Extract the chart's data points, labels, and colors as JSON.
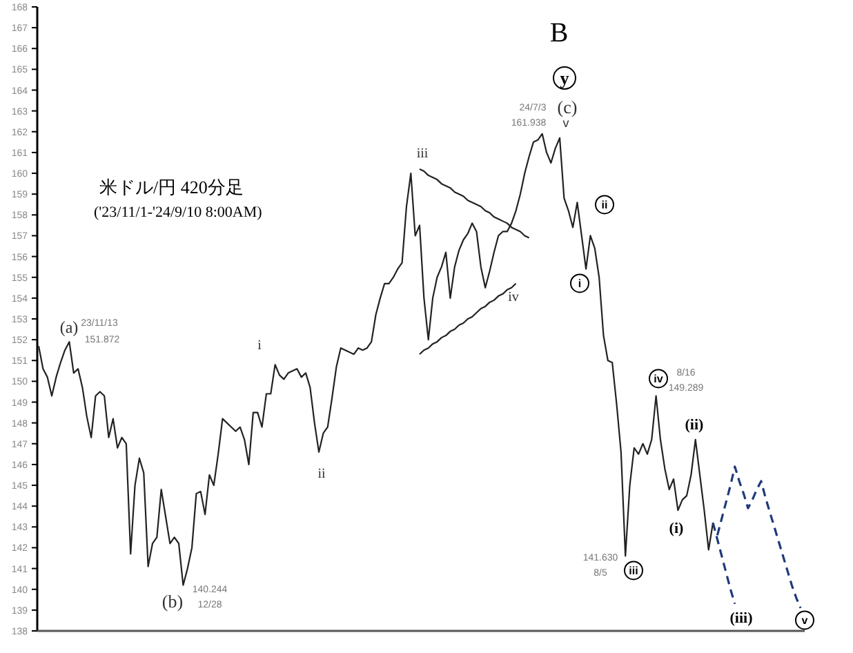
{
  "chart_data": {
    "type": "line",
    "title": "米ドル/円 420分足",
    "subtitle": "('23/11/1-'24/9/10 8:00AM)",
    "categories": [
      null,
      null,
      null,
      null,
      null,
      null,
      null,
      null,
      null,
      null,
      null,
      null,
      null,
      null,
      null,
      null,
      null,
      null,
      null,
      null,
      null,
      null,
      null,
      null,
      null,
      null,
      null,
      null,
      null,
      null,
      null,
      null,
      null,
      null,
      null,
      null,
      null,
      null,
      null,
      null,
      null,
      null,
      null,
      null,
      null,
      null,
      null,
      null,
      null,
      null,
      null,
      null,
      null,
      null,
      null,
      null,
      null,
      null,
      null,
      null,
      null,
      null,
      null,
      null,
      null,
      null,
      null,
      null,
      null,
      null,
      null,
      null,
      null,
      null,
      null,
      null,
      null,
      null,
      null,
      null,
      null,
      null,
      null,
      null,
      null,
      null,
      null,
      null,
      null,
      null,
      null,
      null,
      null,
      null,
      null,
      null,
      null,
      null,
      null,
      null,
      null,
      null,
      null,
      null,
      null,
      null,
      null,
      null,
      null,
      null,
      null,
      null,
      null,
      null,
      null,
      null,
      null,
      null,
      null,
      null,
      null,
      null,
      null,
      null,
      null,
      null,
      null,
      null,
      null,
      null,
      null,
      null,
      null,
      null,
      null,
      null,
      null,
      null,
      null,
      null,
      null,
      null,
      null,
      null,
      null,
      null,
      null,
      null,
      null,
      null,
      null,
      null,
      null,
      null,
      null,
      null,
      null,
      null,
      null,
      null,
      null,
      null,
      null,
      null,
      null,
      null,
      null,
      null,
      null,
      null,
      null,
      null,
      null,
      null,
      null
    ],
    "series": [
      {
        "color": "#222222",
        "line_style": "solid",
        "values": [
          151.7,
          150.6,
          150.2,
          149.3,
          150.2,
          150.9,
          151.5,
          151.9,
          150.4,
          150.6,
          149.7,
          148.3,
          147.3,
          149.3,
          149.5,
          149.3,
          147.3,
          148.2,
          146.8,
          147.3,
          147.0,
          141.7,
          145.0,
          146.3,
          145.6,
          141.1,
          142.2,
          142.5,
          144.8,
          143.5,
          142.2,
          142.5,
          142.2,
          140.2,
          141.0,
          142.0,
          144.6,
          144.7,
          143.6,
          145.5,
          145.0,
          146.5,
          148.2,
          148.0,
          147.8,
          147.6,
          147.8,
          147.2,
          146.0,
          148.5,
          148.5,
          147.8,
          149.4,
          149.4,
          150.8,
          150.3,
          150.1,
          150.4,
          150.5,
          150.6,
          150.2,
          150.4,
          149.7,
          148.0,
          146.6,
          147.5,
          147.8,
          149.2,
          150.7,
          151.6,
          151.5,
          151.4,
          151.3,
          151.6,
          151.5,
          151.6,
          151.9,
          153.2,
          154.0,
          154.7,
          154.7,
          155.0,
          155.4,
          155.7,
          158.4,
          160.0,
          157.0,
          157.5,
          154.0,
          152.0,
          154.0,
          155.0,
          155.5,
          156.2,
          154.0,
          155.5,
          156.3,
          156.8,
          157.1,
          157.6,
          157.2,
          155.5,
          154.5,
          155.3,
          156.2,
          157.0,
          157.2,
          157.2,
          157.6,
          158.2,
          159.0,
          160.0,
          160.8,
          161.5,
          161.6,
          161.9,
          161.0,
          160.5,
          161.2,
          161.7,
          158.8,
          158.2,
          157.4,
          158.6,
          157.0,
          155.4,
          157.0,
          156.4,
          155.0,
          152.2,
          151.0,
          150.9,
          148.9,
          146.6,
          141.6,
          145.0,
          146.8,
          146.5,
          147.0,
          146.5,
          147.2,
          149.3,
          147.2,
          145.8,
          144.8,
          145.3,
          143.8,
          144.3,
          144.5,
          145.5,
          147.2,
          145.5,
          143.8,
          141.9,
          143.2,
          null,
          null,
          null,
          null,
          null,
          null,
          null,
          null,
          null,
          null,
          null,
          null,
          null,
          null,
          null,
          null,
          null,
          null,
          null,
          null
        ]
      },
      {
        "color": "#1f3a7a",
        "line_style": "dashed",
        "values": [
          null,
          null,
          null,
          null,
          null,
          null,
          null,
          null,
          null,
          null,
          null,
          null,
          null,
          null,
          null,
          null,
          null,
          null,
          null,
          null,
          null,
          null,
          null,
          null,
          null,
          null,
          null,
          null,
          null,
          null,
          null,
          null,
          null,
          null,
          null,
          null,
          null,
          null,
          null,
          null,
          null,
          null,
          null,
          null,
          null,
          null,
          null,
          null,
          null,
          null,
          null,
          null,
          null,
          null,
          null,
          null,
          null,
          null,
          null,
          null,
          null,
          null,
          null,
          null,
          null,
          null,
          null,
          null,
          null,
          null,
          null,
          null,
          null,
          null,
          null,
          null,
          null,
          null,
          null,
          null,
          null,
          null,
          null,
          null,
          null,
          null,
          null,
          null,
          null,
          null,
          null,
          null,
          null,
          null,
          null,
          null,
          null,
          null,
          null,
          null,
          null,
          null,
          null,
          null,
          null,
          null,
          null,
          null,
          null,
          null,
          null,
          null,
          null,
          null,
          null,
          null,
          null,
          null,
          null,
          null,
          null,
          null,
          null,
          null,
          null,
          null,
          null,
          null,
          null,
          null,
          null,
          null,
          null,
          null,
          null,
          null,
          null,
          null,
          null,
          null,
          null,
          null,
          null,
          null,
          null,
          null,
          null,
          null,
          null,
          null,
          null,
          null,
          null,
          null,
          143.2,
          142.4,
          141.6,
          140.8,
          140.0,
          139.3,
          null,
          null,
          null,
          null,
          null,
          null,
          null,
          null,
          null,
          null,
          null,
          null,
          null,
          null,
          null
        ]
      },
      {
        "color": "#1f3a7a",
        "line_style": "dashed",
        "values": [
          null,
          null,
          null,
          null,
          null,
          null,
          null,
          null,
          null,
          null,
          null,
          null,
          null,
          null,
          null,
          null,
          null,
          null,
          null,
          null,
          null,
          null,
          null,
          null,
          null,
          null,
          null,
          null,
          null,
          null,
          null,
          null,
          null,
          null,
          null,
          null,
          null,
          null,
          null,
          null,
          null,
          null,
          null,
          null,
          null,
          null,
          null,
          null,
          null,
          null,
          null,
          null,
          null,
          null,
          null,
          null,
          null,
          null,
          null,
          null,
          null,
          null,
          null,
          null,
          null,
          null,
          null,
          null,
          null,
          null,
          null,
          null,
          null,
          null,
          null,
          null,
          null,
          null,
          null,
          null,
          null,
          null,
          null,
          null,
          null,
          null,
          null,
          null,
          null,
          null,
          null,
          null,
          null,
          null,
          null,
          null,
          null,
          null,
          null,
          null,
          null,
          null,
          null,
          null,
          null,
          null,
          null,
          null,
          null,
          null,
          null,
          null,
          null,
          null,
          null,
          null,
          null,
          null,
          null,
          null,
          null,
          null,
          null,
          null,
          null,
          null,
          null,
          null,
          null,
          null,
          null,
          null,
          null,
          null,
          null,
          null,
          null,
          null,
          null,
          null,
          null,
          null,
          null,
          null,
          null,
          null,
          null,
          null,
          null,
          null,
          null,
          null,
          null,
          null,
          null,
          142.6,
          143.4,
          144.2,
          145.0,
          145.9,
          145.2,
          144.6,
          143.9,
          144.3,
          144.8,
          145.2,
          144.4,
          143.7,
          143.0,
          142.3,
          141.6,
          140.9,
          140.2,
          139.6,
          139.1
        ]
      },
      {
        "color": "#222222",
        "line_style": "solid",
        "values": [
          null,
          null,
          null,
          null,
          null,
          null,
          null,
          null,
          null,
          null,
          null,
          null,
          null,
          null,
          null,
          null,
          null,
          null,
          null,
          null,
          null,
          null,
          null,
          null,
          null,
          null,
          null,
          null,
          null,
          null,
          null,
          null,
          null,
          null,
          null,
          null,
          null,
          null,
          null,
          null,
          null,
          null,
          null,
          null,
          null,
          null,
          null,
          null,
          null,
          null,
          null,
          null,
          null,
          null,
          null,
          null,
          null,
          null,
          null,
          null,
          null,
          null,
          null,
          null,
          null,
          null,
          null,
          null,
          null,
          null,
          null,
          null,
          null,
          null,
          null,
          null,
          null,
          null,
          null,
          null,
          null,
          null,
          null,
          null,
          null,
          null,
          null,
          160.2,
          160.1,
          159.9,
          159.8,
          159.7,
          159.5,
          159.4,
          159.3,
          159.1,
          159.0,
          158.9,
          158.7,
          158.6,
          158.5,
          158.4,
          158.2,
          158.1,
          157.9,
          157.8,
          157.7,
          157.6,
          157.4,
          157.3,
          157.2,
          157.0,
          156.9,
          null,
          null,
          null,
          null,
          null,
          null,
          null,
          null,
          null,
          null,
          null,
          null,
          null,
          null,
          null,
          null,
          null,
          null,
          null,
          null,
          null,
          null,
          null,
          null,
          null,
          null,
          null,
          null,
          null,
          null,
          null,
          null,
          null,
          null,
          null,
          null,
          null,
          null,
          null,
          null,
          null,
          null,
          null,
          null,
          null,
          null,
          null,
          null,
          null,
          null,
          null,
          null,
          null,
          null,
          null,
          null,
          null,
          null,
          null,
          null,
          null,
          null
        ]
      },
      {
        "color": "#222222",
        "line_style": "solid",
        "values": [
          null,
          null,
          null,
          null,
          null,
          null,
          null,
          null,
          null,
          null,
          null,
          null,
          null,
          null,
          null,
          null,
          null,
          null,
          null,
          null,
          null,
          null,
          null,
          null,
          null,
          null,
          null,
          null,
          null,
          null,
          null,
          null,
          null,
          null,
          null,
          null,
          null,
          null,
          null,
          null,
          null,
          null,
          null,
          null,
          null,
          null,
          null,
          null,
          null,
          null,
          null,
          null,
          null,
          null,
          null,
          null,
          null,
          null,
          null,
          null,
          null,
          null,
          null,
          null,
          null,
          null,
          null,
          null,
          null,
          null,
          null,
          null,
          null,
          null,
          null,
          null,
          null,
          null,
          null,
          null,
          null,
          null,
          null,
          null,
          null,
          null,
          null,
          151.3,
          151.5,
          151.6,
          151.8,
          151.9,
          152.1,
          152.2,
          152.4,
          152.5,
          152.7,
          152.8,
          153.0,
          153.1,
          153.3,
          153.5,
          153.6,
          153.8,
          153.9,
          154.1,
          154.2,
          154.4,
          154.5,
          154.7,
          null,
          null,
          null,
          null,
          null,
          null,
          null,
          null,
          null,
          null,
          null,
          null,
          null,
          null,
          null,
          null,
          null,
          null,
          null,
          null,
          null,
          null,
          null,
          null,
          null,
          null,
          null,
          null,
          null,
          null,
          null,
          null,
          null,
          null,
          null,
          null,
          null,
          null,
          null,
          null,
          null,
          null,
          null,
          null,
          null,
          null,
          null,
          null,
          null,
          null,
          null,
          null,
          null,
          null,
          null,
          null,
          null,
          null,
          null,
          null,
          null,
          null,
          null,
          null,
          null
        ]
      }
    ],
    "ylim": [
      138,
      168
    ],
    "yticks": [
      138,
      139,
      140,
      141,
      142,
      143,
      144,
      145,
      146,
      147,
      148,
      149,
      150,
      151,
      152,
      153,
      154,
      155,
      156,
      157,
      158,
      159,
      160,
      161,
      162,
      163,
      164,
      165,
      166,
      167,
      168
    ],
    "annotations": [
      "B",
      "y",
      "(c)",
      "24/7/3",
      "161.938",
      "v",
      "iii",
      "iv",
      "ii",
      "i",
      "(a)",
      "23/11/13",
      "151.872",
      "i",
      "ii",
      "(b)",
      "140.244",
      "12/28",
      "iv",
      "8/16",
      "149.289",
      "(ii)",
      "(i)",
      "141.630",
      "8/5",
      "iii",
      "(iii)",
      "v"
    ]
  }
}
